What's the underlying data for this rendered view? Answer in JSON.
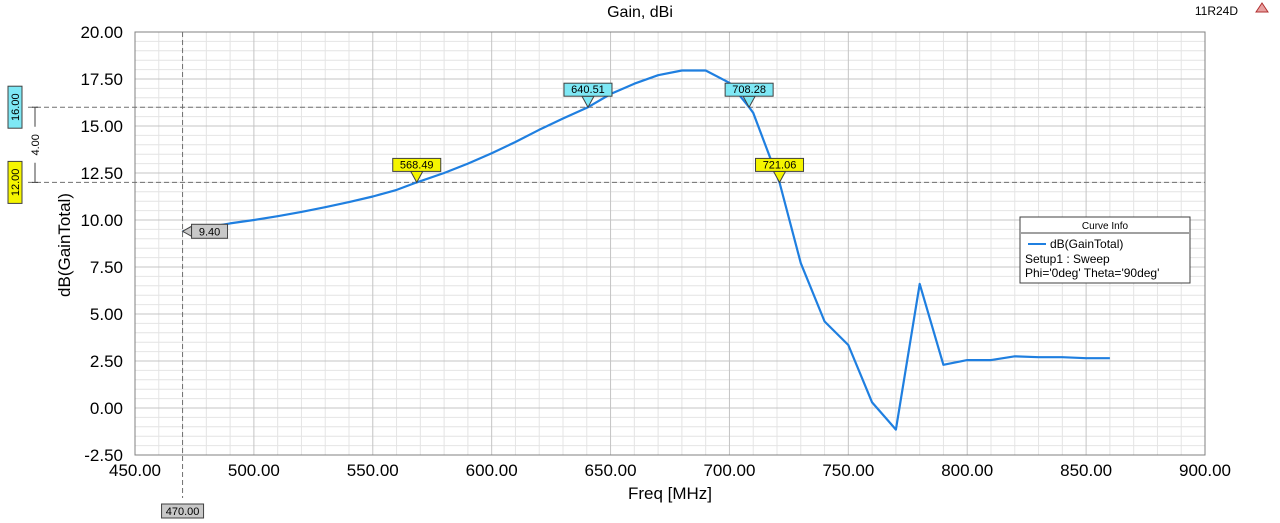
{
  "design_name": "11R24D",
  "chart_data": {
    "type": "line",
    "title": "Gain, dBi",
    "xlabel": "Freq [MHz]",
    "ylabel": "dB(GainTotal)",
    "xlim": [
      450,
      900
    ],
    "ylim": [
      -2.5,
      20
    ],
    "x_ticks": [
      "450.00",
      "500.00",
      "550.00",
      "600.00",
      "650.00",
      "700.00",
      "750.00",
      "800.00",
      "850.00",
      "900.00"
    ],
    "y_ticks": [
      "-2.50",
      "0.00",
      "2.50",
      "5.00",
      "7.50",
      "10.00",
      "12.50",
      "15.00",
      "17.50",
      "20.00"
    ],
    "grid": true,
    "legend": {
      "title": "Curve Info",
      "placement": "right",
      "entries": [
        "dB(GainTotal)",
        "Setup1 : Sweep",
        "Phi='0deg' Theta='90deg'"
      ]
    },
    "series": [
      {
        "name": "dB(GainTotal)",
        "color": "#1f7fe0",
        "x": [
          470,
          480,
          490,
          500,
          510,
          520,
          530,
          540,
          550,
          560,
          568.49,
          580,
          590,
          600,
          610,
          620,
          630,
          640.51,
          650,
          660,
          670,
          680,
          690,
          700,
          708.28,
          710,
          721.06,
          730,
          740,
          750,
          760,
          770,
          780,
          790,
          800,
          810,
          820,
          830,
          840,
          850,
          860
        ],
        "y": [
          9.4,
          9.6,
          9.82,
          10.0,
          10.2,
          10.43,
          10.68,
          10.95,
          11.25,
          11.6,
          12.0,
          12.5,
          13.0,
          13.55,
          14.15,
          14.8,
          15.4,
          16.0,
          16.7,
          17.25,
          17.7,
          17.95,
          17.95,
          17.3,
          16.0,
          15.7,
          12.0,
          7.7,
          4.6,
          3.35,
          0.3,
          -1.15,
          6.6,
          2.3,
          2.55,
          2.55,
          2.75,
          2.7,
          2.7,
          2.65,
          2.65
        ]
      }
    ],
    "markers": [
      {
        "x": 470,
        "y": 9.4,
        "label": "9.40",
        "color": "#c8c8c8"
      },
      {
        "x": 568.49,
        "y": 12.0,
        "label": "568.49",
        "color": "#f5f500"
      },
      {
        "x": 640.51,
        "y": 16.0,
        "label": "640.51",
        "color": "#7ee8f5"
      },
      {
        "x": 708.28,
        "y": 16.0,
        "label": "708.28",
        "color": "#7ee8f5"
      },
      {
        "x": 721.06,
        "y": 12.0,
        "label": "721.06",
        "color": "#f5f500"
      }
    ],
    "reference_lines": {
      "vertical": {
        "x": 470,
        "label": "470.00"
      },
      "horizontal": [
        {
          "y": 16.0,
          "label": "16.00",
          "color": "#7ee8f5"
        },
        {
          "y": 12.0,
          "label": "12.00",
          "color": "#f5f500"
        }
      ],
      "delta_label": "4.00"
    }
  }
}
